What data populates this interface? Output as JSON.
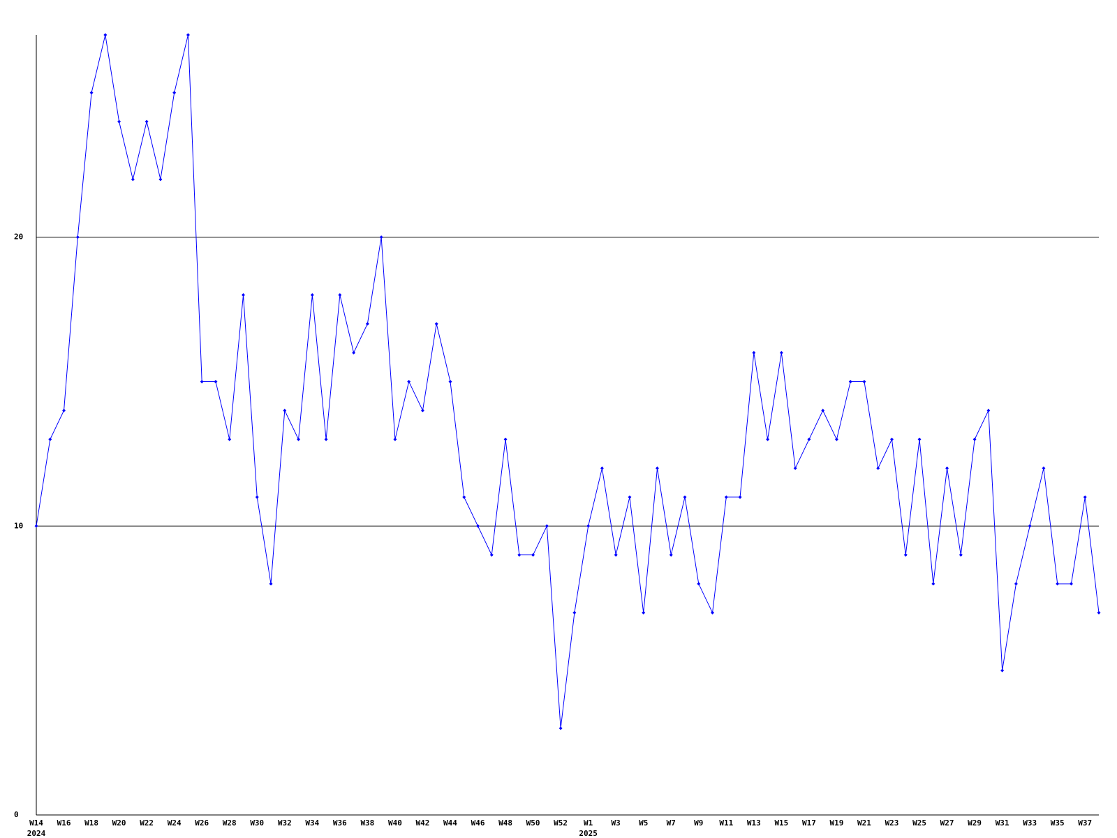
{
  "chart_data": {
    "type": "line",
    "categories": [
      "W14",
      null,
      "W16",
      null,
      "W18",
      null,
      "W20",
      null,
      "W22",
      null,
      "W24",
      null,
      "W26",
      null,
      "W28",
      null,
      "W30",
      null,
      "W32",
      null,
      "W34",
      null,
      "W36",
      null,
      "W38",
      null,
      "W40",
      null,
      "W42",
      null,
      "W44",
      null,
      "W46",
      null,
      "W48",
      null,
      "W50",
      null,
      "W52",
      null,
      "W1",
      null,
      "W3",
      null,
      "W5",
      null,
      "W7",
      null,
      "W9",
      null,
      "W11",
      null,
      "W13",
      null,
      "W15",
      null,
      "W17",
      null,
      "W19",
      null,
      "W21",
      null,
      "W23",
      null,
      "W25",
      null,
      "W27",
      null,
      "W29",
      null,
      "W31",
      null,
      "W33",
      null,
      "W35",
      null,
      "W37",
      null
    ],
    "x_groups": [
      {
        "label": "2024",
        "start": 0
      },
      {
        "label": "2025",
        "start": 40
      }
    ],
    "series": [
      {
        "color": "#0000ff",
        "values": [
          10,
          13,
          14,
          20,
          25,
          27,
          24,
          22,
          24,
          22,
          25,
          27,
          15,
          15,
          13,
          18,
          11,
          8,
          14,
          13,
          18,
          13,
          18,
          16,
          17,
          20,
          13,
          15,
          14,
          17,
          15,
          11,
          10,
          9,
          13,
          9,
          9,
          10,
          3,
          7,
          10,
          12,
          9,
          11,
          7,
          12,
          9,
          11,
          8,
          7,
          11,
          11,
          16,
          13,
          16,
          12,
          13,
          14,
          13,
          15,
          15,
          12,
          13,
          9,
          13,
          8,
          12,
          9,
          13,
          14,
          5,
          8,
          10,
          12,
          8,
          8,
          11,
          7
        ]
      }
    ],
    "ylim": [
      0,
      27
    ],
    "yticks": [
      0,
      10,
      20
    ],
    "grid": true
  }
}
